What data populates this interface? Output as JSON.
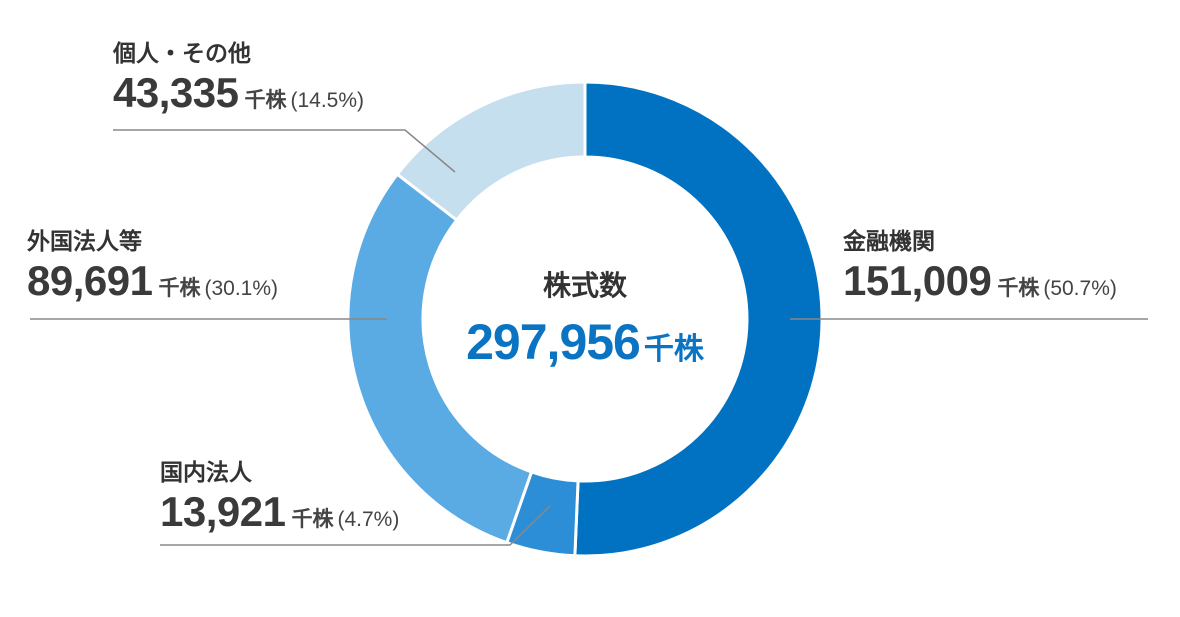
{
  "chart_data": {
    "type": "pie",
    "unit": "千株",
    "center": {
      "title": "株式数",
      "value": "297,956",
      "unit": "千株"
    },
    "slices": [
      {
        "name": "金融機関",
        "value": 151009,
        "value_label": "151,009",
        "percent_label": "(50.7%)",
        "color": "#0072c1"
      },
      {
        "name": "国内法人",
        "value": 13921,
        "value_label": "13,921",
        "percent_label": "(4.7%)",
        "color": "#2d8ed8"
      },
      {
        "name": "外国法人等",
        "value": 89691,
        "value_label": "89,691",
        "percent_label": "(30.1%)",
        "color": "#5aabe3"
      },
      {
        "name": "個人・その他",
        "value": 43335,
        "value_label": "43,335",
        "percent_label": "(14.5%)",
        "color": "#c5dfef"
      }
    ],
    "leader_color": "#888888"
  }
}
